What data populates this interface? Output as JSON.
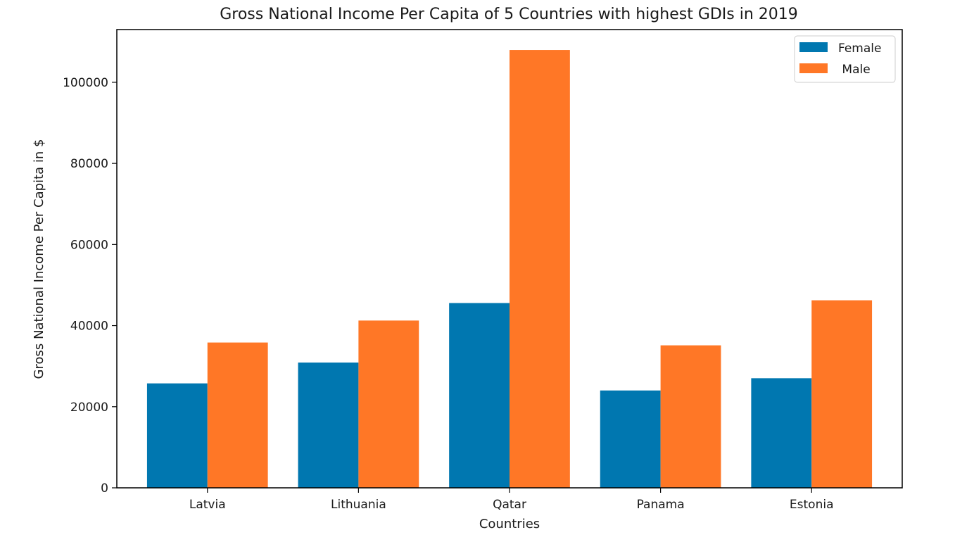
{
  "chart_data": {
    "type": "bar",
    "title": "Gross National Income Per Capita of 5 Countries with highest GDIs in 2019",
    "xlabel": "Countries",
    "ylabel": "Gross National Income Per Capita in $",
    "categories": [
      "Latvia",
      "Lithuania",
      "Qatar",
      "Panama",
      "Estonia"
    ],
    "series": [
      {
        "name": "Female",
        "color": "#0077b0",
        "values": [
          25757,
          30894,
          45571,
          24008,
          27024
        ]
      },
      {
        "name": "Male",
        "color": "#ff7726",
        "values": [
          35831,
          41249,
          107958,
          35138,
          46246
        ]
      }
    ],
    "ylim": [
      0,
      113000
    ],
    "yticks": [
      0,
      20000,
      40000,
      60000,
      80000,
      100000
    ],
    "ytick_labels": [
      "0",
      "20000",
      "40000",
      "60000",
      "80000",
      "100000"
    ],
    "grid": false,
    "legend": {
      "placement": "top-right",
      "labels": [
        "Female",
        " Male"
      ]
    }
  }
}
